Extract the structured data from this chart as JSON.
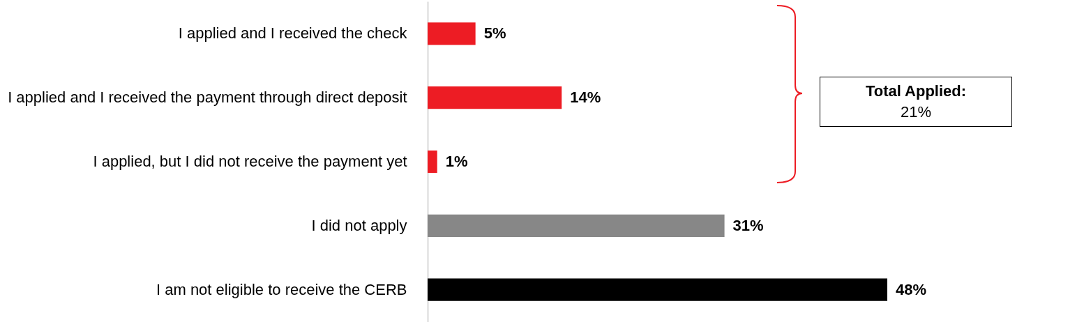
{
  "chart_data": {
    "type": "bar",
    "orientation": "horizontal",
    "tick_labels": "y",
    "categories": [
      "I applied and I received the check",
      "I applied and I received the payment through direct deposit",
      "I applied, but I did not receive the payment yet",
      "I did not apply",
      "I am not eligible to receive the CERB"
    ],
    "values": [
      5,
      14,
      1,
      31,
      48
    ],
    "colors": [
      "#ed1c24",
      "#ed1c24",
      "#ed1c24",
      "#878787",
      "#000000"
    ],
    "value_labels": [
      "5%",
      "14%",
      "1%",
      "31%",
      "48%"
    ],
    "annotations": [
      "Total Applied:",
      "21%"
    ]
  }
}
